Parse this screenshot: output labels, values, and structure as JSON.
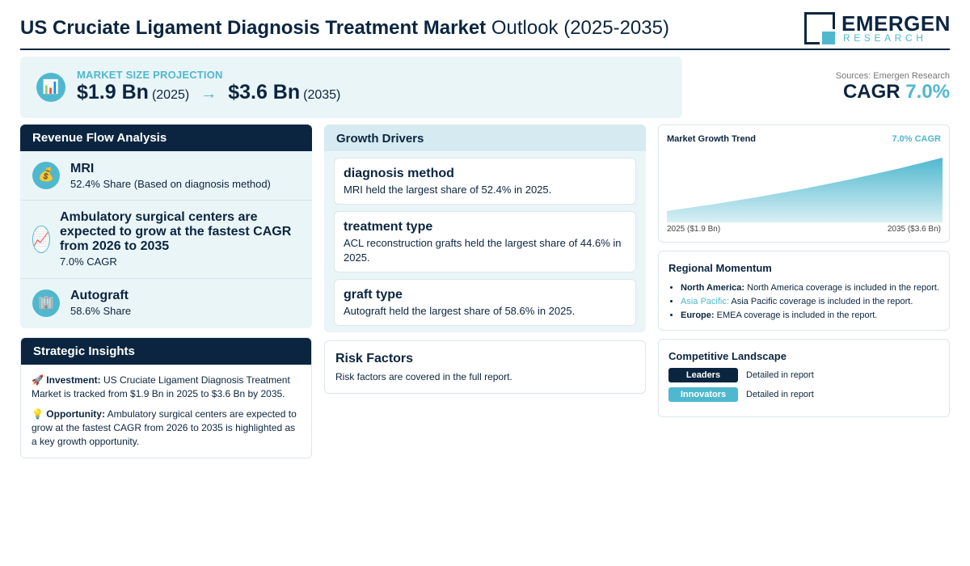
{
  "header": {
    "title_bold": "US Cruciate Ligament Diagnosis Treatment Market",
    "title_rest": "Outlook (2025-2035)",
    "logo_main": "EMERGEN",
    "logo_sub": "RESEARCH"
  },
  "projection": {
    "label": "MARKET SIZE PROJECTION",
    "start_value": "$1.9 Bn",
    "start_year": "(2025)",
    "arrow": "→",
    "end_value": "$3.6 Bn",
    "end_year": "(2035)",
    "icon": "bar-chart-icon"
  },
  "sources": "Sources: Emergen Research",
  "cagr": {
    "label": "CAGR",
    "value": "7.0%"
  },
  "revenue_flow": {
    "title": "Revenue Flow Analysis",
    "items": [
      {
        "name": "MRI",
        "sub": "52.4% Share (Based on diagnosis method)",
        "icon": "money-bag-icon"
      },
      {
        "name": "Ambulatory surgical centers are expected to grow at the fastest CAGR from 2026 to 2035",
        "sub": "7.0% CAGR",
        "icon": "trend-up-icon"
      },
      {
        "name": "Autograft",
        "sub": "58.6% Share",
        "icon": "building-icon"
      }
    ]
  },
  "strategic": {
    "title": "Strategic Insights",
    "investment_label": "Investment:",
    "investment_text": "US Cruciate Ligament Diagnosis Treatment Market is tracked from $1.9 Bn in 2025 to $3.6 Bn by 2035.",
    "opportunity_label": "Opportunity:",
    "opportunity_text": "Ambulatory surgical centers are expected to grow at the fastest CAGR from 2026 to 2035 is highlighted as a key growth opportunity."
  },
  "drivers": {
    "title": "Growth Drivers",
    "items": [
      {
        "title": "diagnosis method",
        "text": "MRI held the largest share of 52.4% in 2025."
      },
      {
        "title": "treatment type",
        "text": "ACL reconstruction grafts held the largest share of 44.6% in 2025."
      },
      {
        "title": "graft type",
        "text": "Autograft held the largest share of 58.6% in 2025."
      }
    ]
  },
  "risk": {
    "title": "Risk Factors",
    "text": "Risk factors are covered in the full report."
  },
  "trend": {
    "title": "Market Growth Trend",
    "cagr": "7.0% CAGR",
    "start_label": "2025 ($1.9 Bn)",
    "end_label": "2035 ($3.6 Bn)",
    "fill_top": "#4fb8cf",
    "fill_bottom": "#d8eff4"
  },
  "chart_data": {
    "type": "area",
    "x": [
      2025,
      2035
    ],
    "values": [
      1.9,
      3.6
    ],
    "title": "Market Growth Trend"
  },
  "regional": {
    "title": "Regional Momentum",
    "items": [
      {
        "region": "North America:",
        "text": "North America coverage is included in the report."
      },
      {
        "region": "Asia Pacific:",
        "text": "Asia Pacific coverage is included in the report."
      },
      {
        "region": "Europe:",
        "text": "EMEA coverage is included in the report."
      }
    ]
  },
  "competitive": {
    "title": "Competitive Landscape",
    "rows": [
      {
        "badge": "Leaders",
        "text": "Detailed in report",
        "color": "#0b2540"
      },
      {
        "badge": "Innovators",
        "text": "Detailed in report",
        "color": "#4fb8cf"
      }
    ]
  },
  "colors": {
    "navy": "#0b2540",
    "accent": "#4fb8cf",
    "panel": "#eaf5f8"
  }
}
